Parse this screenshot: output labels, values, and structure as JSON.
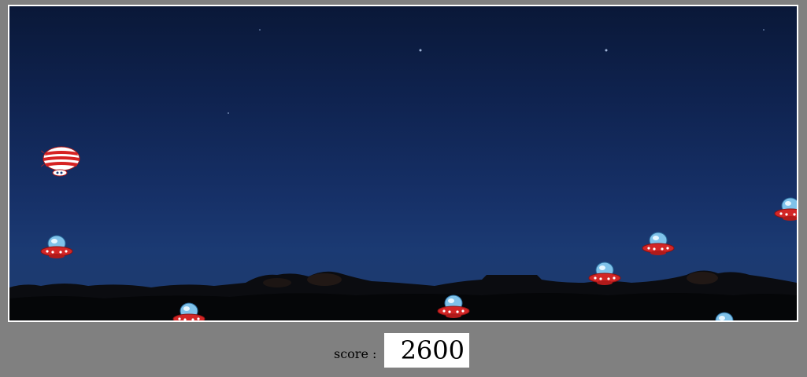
{
  "score": {
    "label": "score :",
    "value": "2600"
  },
  "colors": {
    "page_background": "#808080",
    "sky_top": "#0a1838",
    "sky_bottom": "#1c3a70",
    "frame_border": "#ffffff"
  },
  "sprites": {
    "player": "red-white-striped-blimp",
    "enemy": "ufo-flying-saucer"
  }
}
